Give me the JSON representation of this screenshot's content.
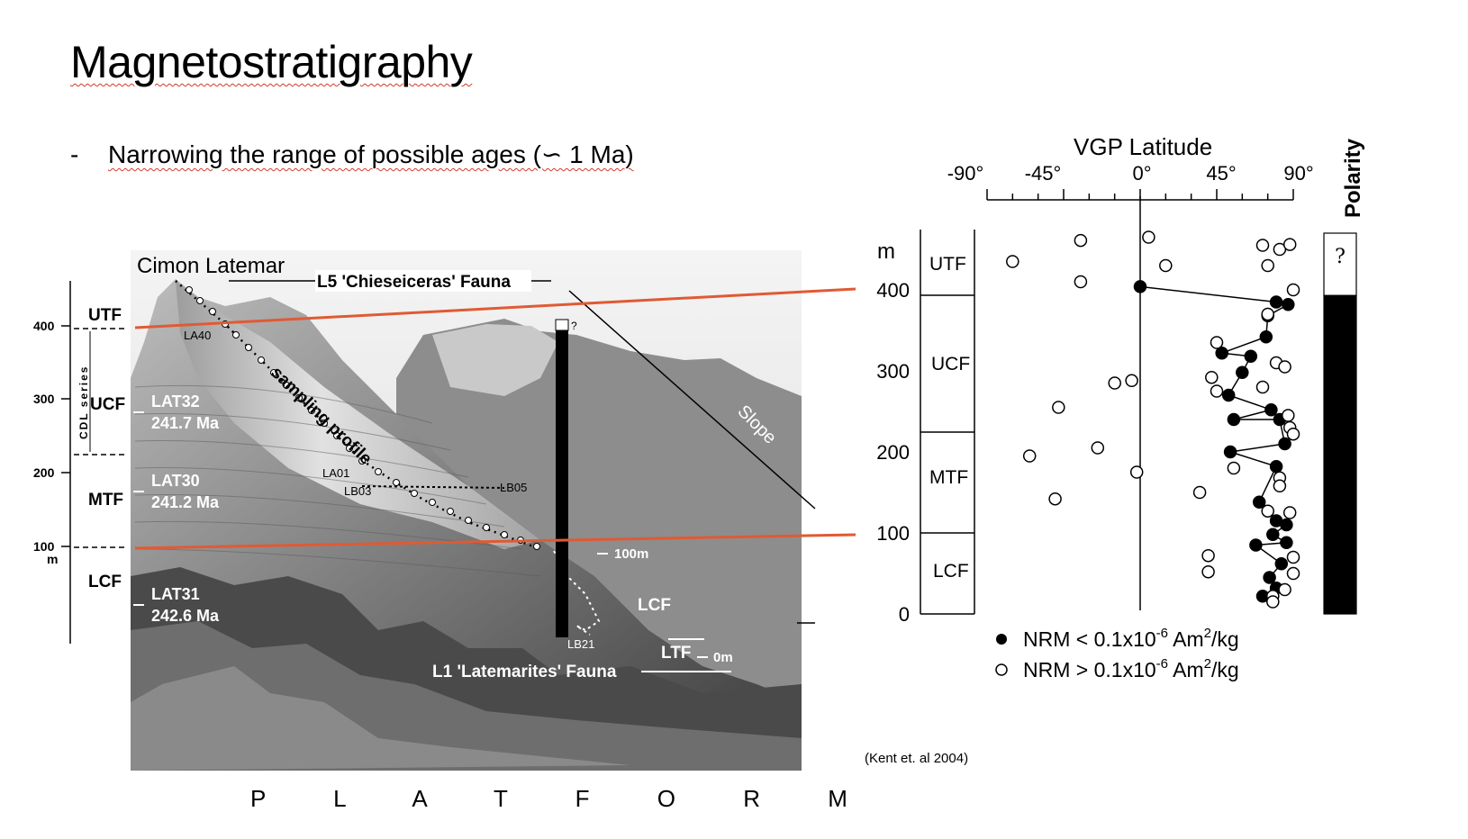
{
  "slide": {
    "title": "Magnetostratigraphy",
    "bullet_dash": "-",
    "bullet_text": "Narrowing the range of possible ages (∽ 1 Ma)",
    "citation": "(Kent et. al 2004)",
    "platform_label": "P L A T F O R M"
  },
  "photo_figure": {
    "site_label": "Cimon Latemar",
    "top_fauna": "L5 'Chieseiceras' Fauna",
    "bottom_fauna": "L1 'Latemarites' Fauna",
    "sampling_profile": "sampling profile",
    "slope_label": "Slope",
    "series_label": "CDL series",
    "axis_unit": "m",
    "axis_ticks": [
      "400",
      "300",
      "200",
      "100"
    ],
    "units_left": [
      "UTF",
      "UCF",
      "MTF",
      "LCF"
    ],
    "samples": [
      {
        "name": "LAT32",
        "age": "241.7 Ma"
      },
      {
        "name": "LAT30",
        "age": "241.2 Ma"
      },
      {
        "name": "LAT31",
        "age": "242.6 Ma"
      }
    ],
    "site_codes": [
      "LA40",
      "LA01",
      "LB03",
      "LB05",
      "LB21"
    ],
    "profile_marks": [
      "100m",
      "LCF",
      "LTF",
      "0m"
    ],
    "question_mark": "?"
  },
  "vgp_chart": {
    "title": "VGP Latitude",
    "x_ticks": [
      "-90°",
      "-45°",
      "0°",
      "45°",
      "90°"
    ],
    "y_unit": "m",
    "y_ticks": [
      "400",
      "300",
      "200",
      "100",
      "0"
    ],
    "units": [
      "UTF",
      "UCF",
      "MTF",
      "LCF"
    ],
    "polarity_label": "Polarity",
    "polarity_unknown": "?",
    "legend_low_prefix": "NRM < 0.1x10",
    "legend_high_prefix": "NRM > 0.1x10",
    "legend_exp": "-6",
    "legend_unit": " Am",
    "legend_unit_exp": "2",
    "legend_suffix": "/kg"
  },
  "chart_data": {
    "type": "scatter",
    "title": "VGP Latitude",
    "xlabel": "VGP Latitude",
    "ylabel": "m",
    "xlim": [
      -90,
      90
    ],
    "ylim": [
      0,
      470
    ],
    "series": [
      {
        "name": "NRM < 0.1x10-6 Am2/kg",
        "marker": "filled",
        "points": [
          [
            0,
            404
          ],
          [
            87,
            382
          ],
          [
            80,
            385
          ],
          [
            75,
            368
          ],
          [
            74,
            342
          ],
          [
            48,
            322
          ],
          [
            65,
            318
          ],
          [
            60,
            298
          ],
          [
            52,
            270
          ],
          [
            77,
            252
          ],
          [
            55,
            240
          ],
          [
            82,
            240
          ],
          [
            85,
            210
          ],
          [
            53,
            200
          ],
          [
            80,
            182
          ],
          [
            70,
            138
          ],
          [
            80,
            115
          ],
          [
            86,
            110
          ],
          [
            78,
            98
          ],
          [
            86,
            88
          ],
          [
            68,
            85
          ],
          [
            83,
            62
          ],
          [
            76,
            45
          ],
          [
            72,
            22
          ],
          [
            80,
            32
          ]
        ]
      },
      {
        "name": "NRM > 0.1x10-6 Am2/kg",
        "marker": "open",
        "points": [
          [
            -35,
            461
          ],
          [
            5,
            465
          ],
          [
            72,
            455
          ],
          [
            82,
            450
          ],
          [
            88,
            456
          ],
          [
            -75,
            435
          ],
          [
            15,
            430
          ],
          [
            75,
            430
          ],
          [
            -35,
            410
          ],
          [
            90,
            400
          ],
          [
            75,
            370
          ],
          [
            45,
            335
          ],
          [
            80,
            310
          ],
          [
            85,
            305
          ],
          [
            -5,
            288
          ],
          [
            -15,
            285
          ],
          [
            42,
            292
          ],
          [
            45,
            275
          ],
          [
            72,
            280
          ],
          [
            87,
            245
          ],
          [
            -48,
            255
          ],
          [
            88,
            230
          ],
          [
            90,
            222
          ],
          [
            -25,
            205
          ],
          [
            -65,
            195
          ],
          [
            -2,
            175
          ],
          [
            55,
            180
          ],
          [
            82,
            168
          ],
          [
            82,
            158
          ],
          [
            35,
            150
          ],
          [
            -50,
            142
          ],
          [
            88,
            125
          ],
          [
            75,
            127
          ],
          [
            90,
            70
          ],
          [
            40,
            72
          ],
          [
            40,
            52
          ],
          [
            90,
            50
          ],
          [
            85,
            30
          ],
          [
            78,
            22
          ],
          [
            78,
            15
          ]
        ]
      }
    ],
    "polarity": [
      {
        "from": 393,
        "to": 470,
        "state": "unknown"
      },
      {
        "from": 0,
        "to": 393,
        "state": "normal"
      }
    ],
    "unit_boundaries": [
      393,
      225,
      100
    ],
    "units": [
      "UTF",
      "UCF",
      "MTF",
      "LCF"
    ]
  },
  "colors": {
    "correlation_line": "#e05a34",
    "wavy_underline": "#d23a2a"
  }
}
